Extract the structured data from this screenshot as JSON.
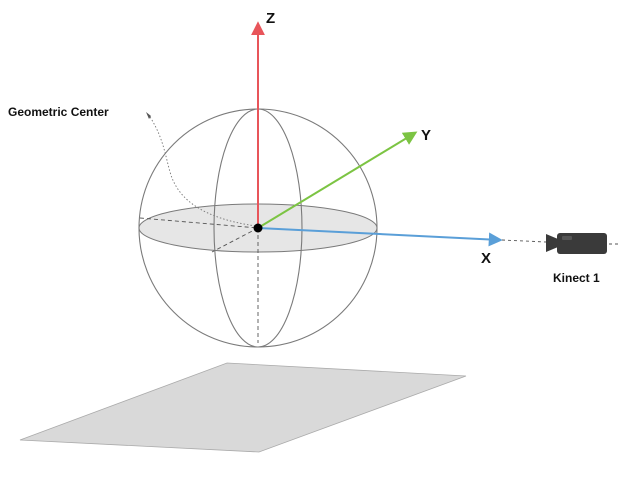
{
  "labels": {
    "z_axis": "Z",
    "y_axis": "Y",
    "x_axis": "X",
    "geometric_center": "Geometric Center",
    "camera": "Kinect 1"
  },
  "colors": {
    "z_axis": "#e8555a",
    "y_axis": "#7cc443",
    "x_axis": "#5a9fd8",
    "sphere_outline": "#7a7a7a",
    "equator_fill": "#e6e6e6",
    "floor_plane": "#d9d9d9",
    "camera": "#3a3a3a",
    "center_point": "#000000"
  },
  "icons": {
    "camera": "video-camera-icon"
  }
}
